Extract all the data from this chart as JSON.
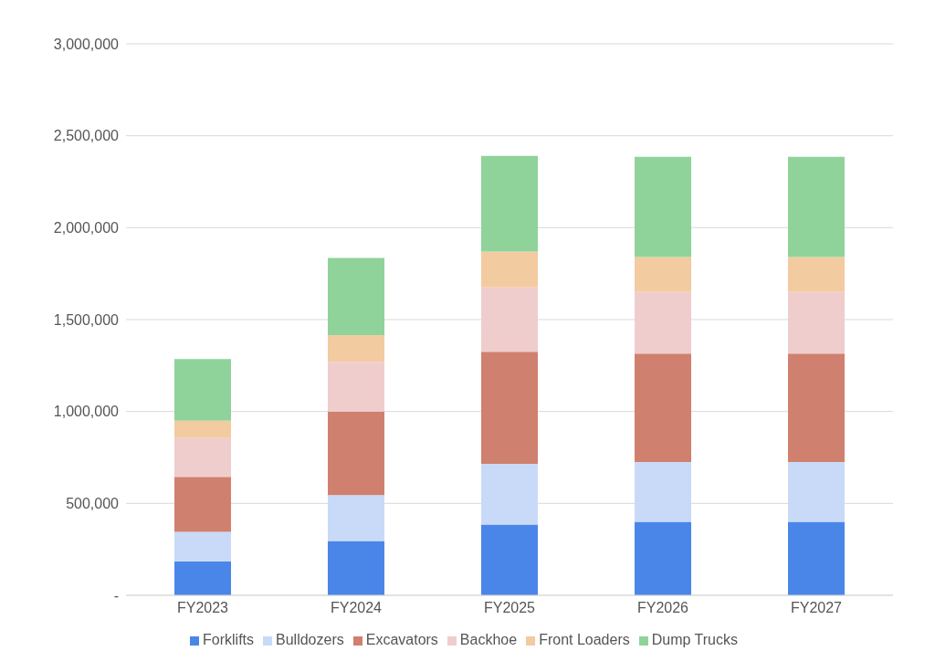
{
  "chart_data": {
    "type": "bar",
    "stacked": true,
    "categories": [
      "FY2023",
      "FY2024",
      "FY2025",
      "FY2026",
      "FY2027"
    ],
    "series": [
      {
        "name": "Forklifts",
        "color": "#4a86e8",
        "values": [
          185000,
          295000,
          385000,
          400000,
          400000
        ]
      },
      {
        "name": "Bulldozers",
        "color": "#c9daf8",
        "values": [
          160000,
          250000,
          330000,
          325000,
          325000
        ]
      },
      {
        "name": "Excavators",
        "color": "#d0806e",
        "values": [
          300000,
          455000,
          610000,
          590000,
          590000
        ]
      },
      {
        "name": "Backhoe",
        "color": "#efcdcd",
        "values": [
          210000,
          270000,
          350000,
          335000,
          335000
        ]
      },
      {
        "name": "Front Loaders",
        "color": "#f3cba0",
        "values": [
          95000,
          145000,
          195000,
          190000,
          190000
        ]
      },
      {
        "name": "Dump Trucks",
        "color": "#8fd39a",
        "values": [
          335000,
          420000,
          520000,
          545000,
          545000
        ]
      }
    ],
    "ylim": [
      0,
      3000000
    ],
    "yticks": [
      {
        "value": 0,
        "label": "-"
      },
      {
        "value": 500000,
        "label": "500,000"
      },
      {
        "value": 1000000,
        "label": "1,000,000"
      },
      {
        "value": 1500000,
        "label": "1,500,000"
      },
      {
        "value": 2000000,
        "label": "2,000,000"
      },
      {
        "value": 2500000,
        "label": "2,500,000"
      },
      {
        "value": 3000000,
        "label": "3,000,000"
      }
    ],
    "grid": "y",
    "legend": "bottom"
  }
}
